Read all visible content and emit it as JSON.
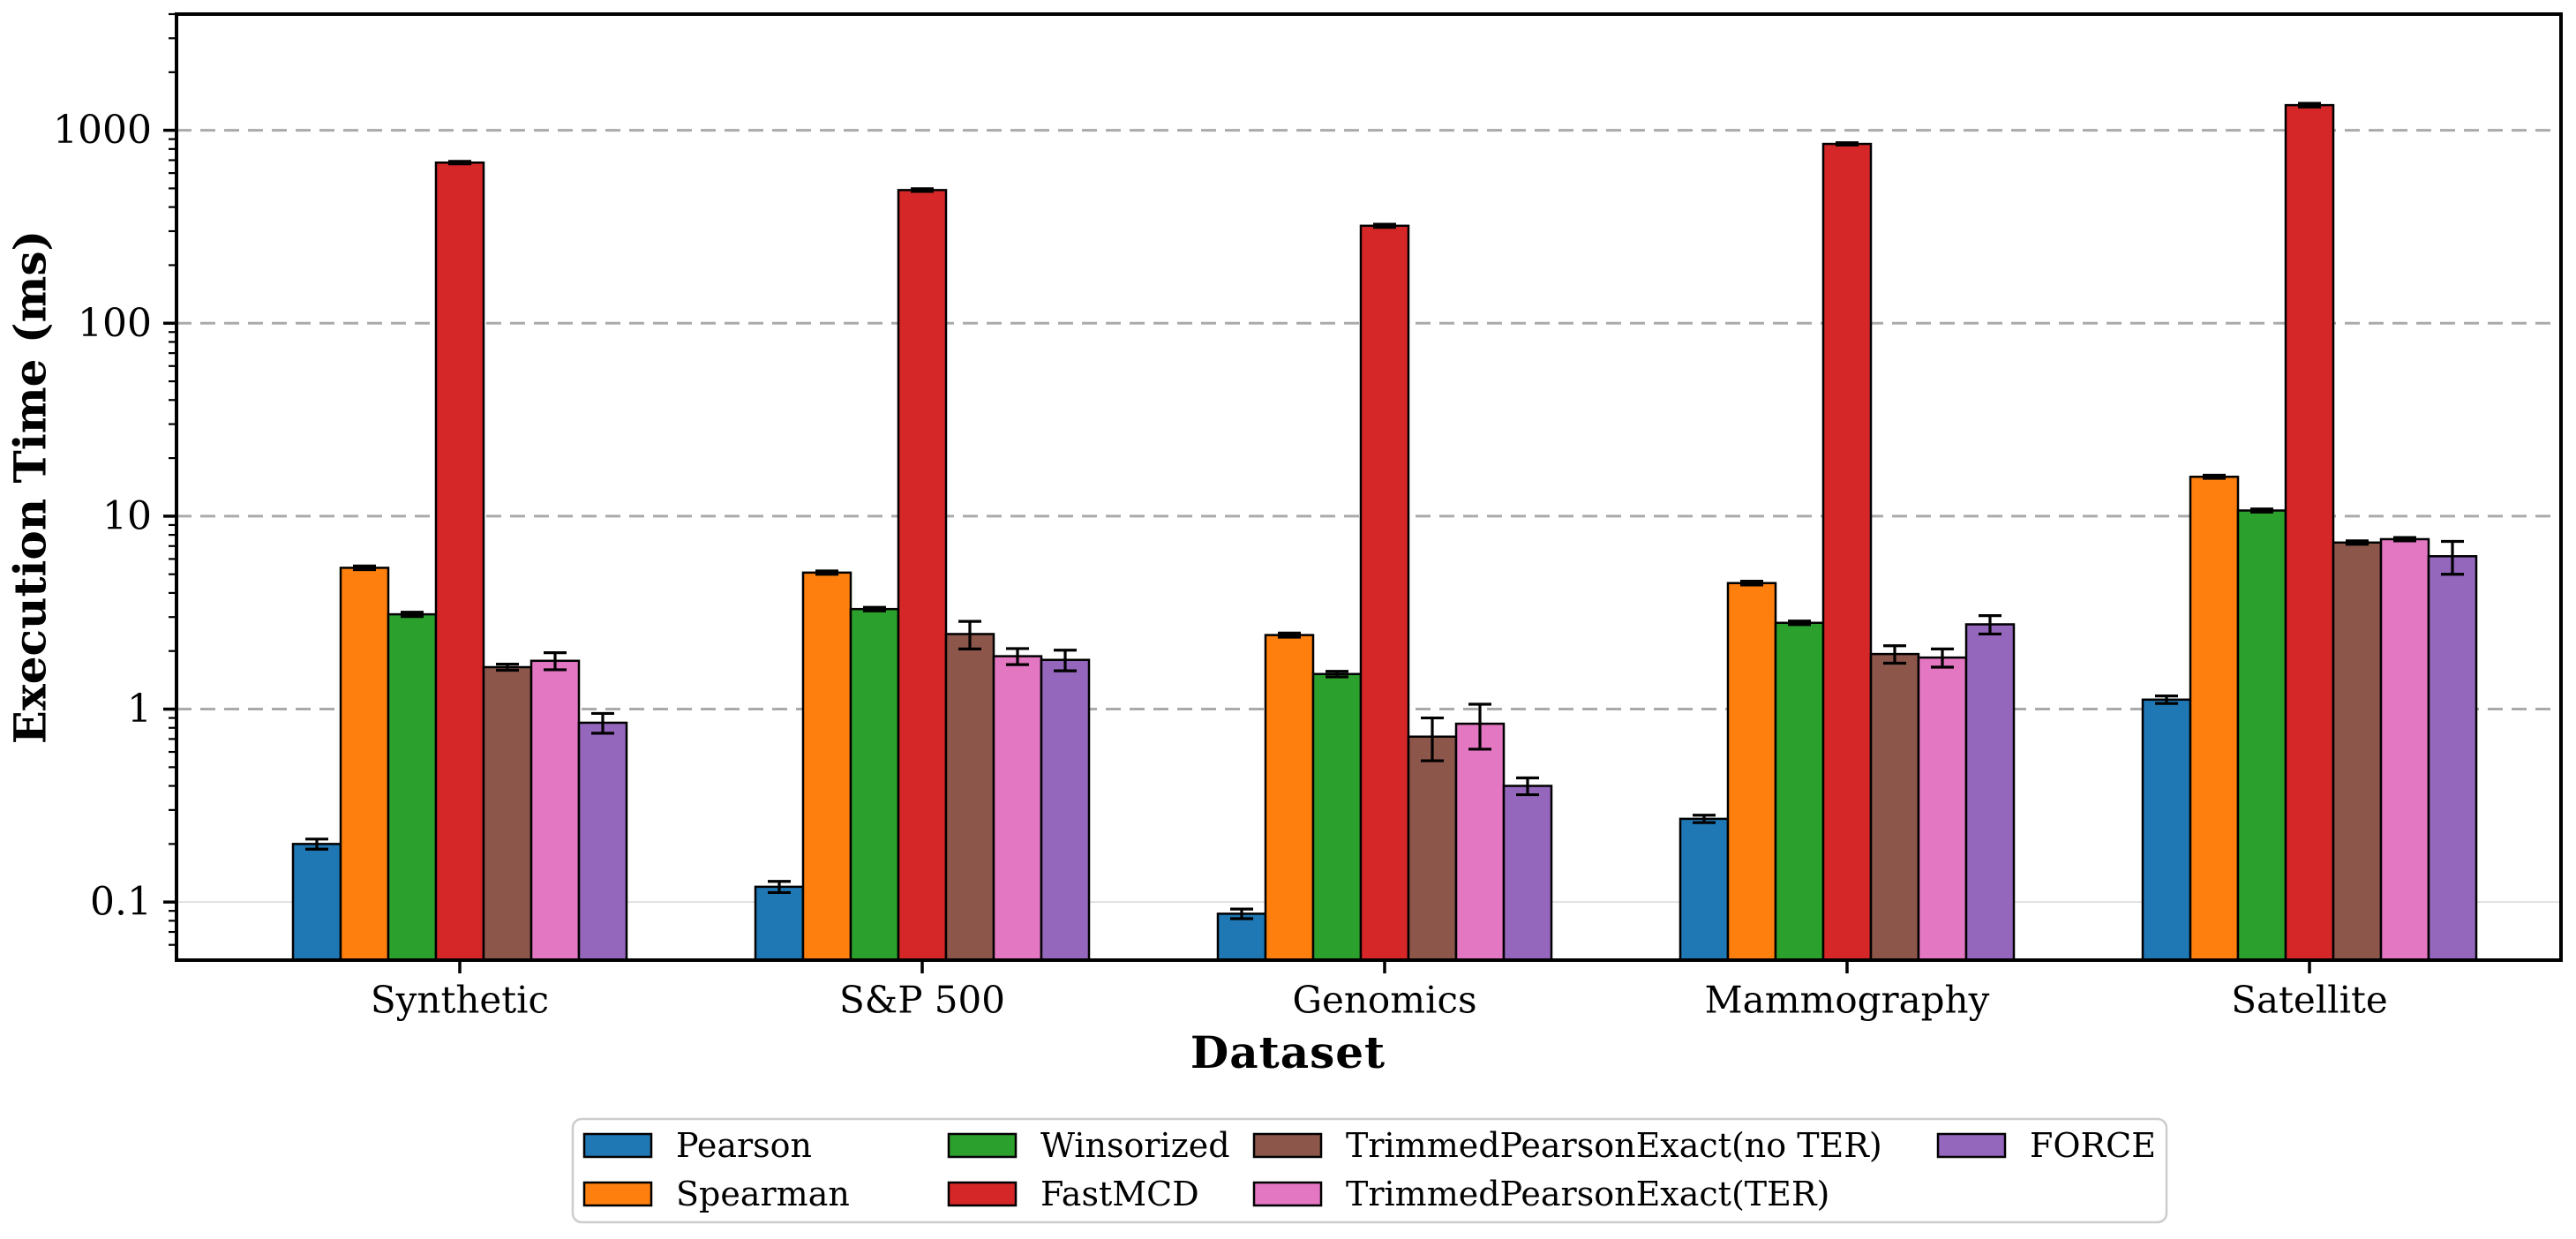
{
  "figure": {
    "background": "#ffffff",
    "plot_border_color": "#000000"
  },
  "chart_data": {
    "type": "bar",
    "title": "",
    "xlabel": "Dataset",
    "ylabel": "Execution Time (ms)",
    "yscale": "log",
    "ylim": [
      0.05,
      4000
    ],
    "grid": {
      "which": "major",
      "style": "dashed",
      "orientation": "horizontal",
      "color": "#aaaaaa"
    },
    "categories": [
      "Synthetic",
      "S&P 500",
      "Genomics",
      "Mammography",
      "Satellite"
    ],
    "yticks": [
      {
        "label": "0.1",
        "value": 0.1
      },
      {
        "label": "1",
        "value": 1
      },
      {
        "label": "10",
        "value": 10
      },
      {
        "label": "100",
        "value": 100
      },
      {
        "label": "1000",
        "value": 1000
      }
    ],
    "series": [
      {
        "name": "Pearson",
        "color": "#1f77b4",
        "values": [
          0.2,
          0.12,
          0.087,
          0.27,
          1.12
        ],
        "errors": [
          0.012,
          0.008,
          0.005,
          0.012,
          0.05
        ]
      },
      {
        "name": "Spearman",
        "color": "#ff7f0e",
        "values": [
          5.4,
          5.1,
          2.42,
          4.5,
          16.0
        ],
        "errors": [
          0.12,
          0.1,
          0.06,
          0.1,
          0.3
        ]
      },
      {
        "name": "Winsorized",
        "color": "#2ca02c",
        "values": [
          3.1,
          3.3,
          1.52,
          2.8,
          10.7
        ],
        "errors": [
          0.08,
          0.07,
          0.05,
          0.06,
          0.2
        ]
      },
      {
        "name": "FastMCD",
        "color": "#d62728",
        "values": [
          680,
          490,
          320,
          850,
          1350
        ],
        "errors": [
          10,
          8,
          6,
          12,
          30
        ]
      },
      {
        "name": "TrimmedPearsonExact(no TER)",
        "color": "#8c564b",
        "values": [
          1.65,
          2.45,
          0.72,
          1.93,
          7.3
        ],
        "errors": [
          0.06,
          0.4,
          0.18,
          0.2,
          0.15
        ]
      },
      {
        "name": "TrimmedPearsonExact(TER)",
        "color": "#e377c2",
        "values": [
          1.78,
          1.88,
          0.84,
          1.85,
          7.6
        ],
        "errors": [
          0.18,
          0.18,
          0.22,
          0.2,
          0.15
        ]
      },
      {
        "name": "FORCE",
        "color": "#9467bd",
        "values": [
          0.85,
          1.8,
          0.4,
          2.75,
          6.2
        ],
        "errors": [
          0.1,
          0.22,
          0.04,
          0.3,
          1.2
        ]
      }
    ],
    "legend": {
      "position": "bottom-center",
      "columns": 4,
      "rows": 2,
      "border_color": "#cccccc",
      "labels": [
        "Pearson",
        "Spearman",
        "Winsorized",
        "FastMCD",
        "TrimmedPearsonExact(no TER)",
        "TrimmedPearsonExact(TER)",
        "FORCE"
      ]
    }
  }
}
